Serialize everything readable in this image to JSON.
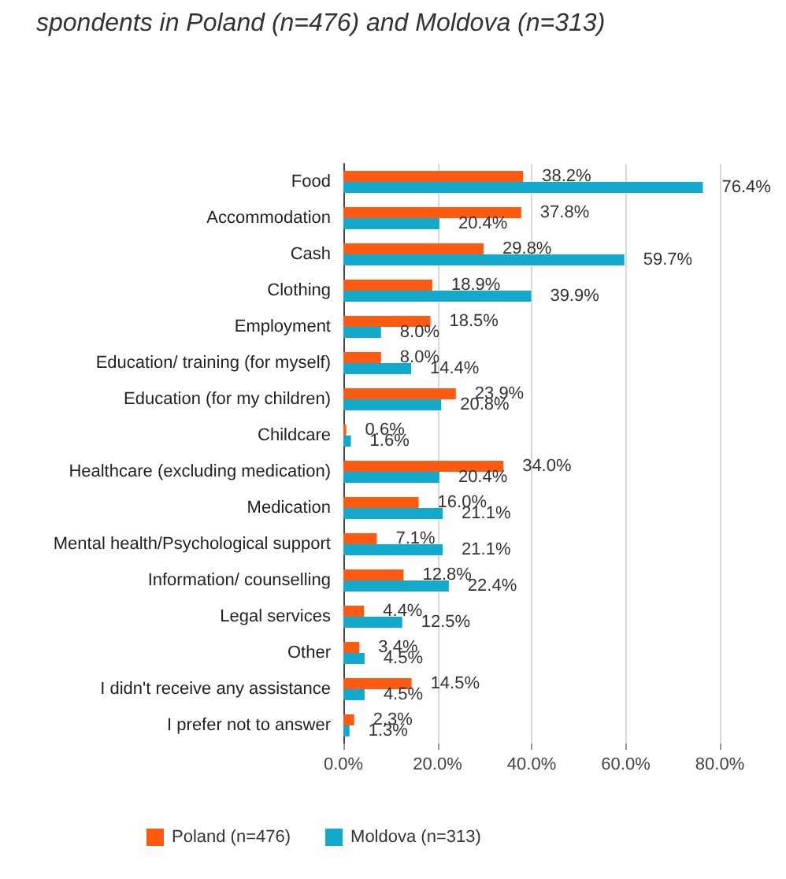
{
  "chart_data": {
    "type": "bar",
    "orientation": "horizontal",
    "title": "spondents in Poland (n=476) and Moldova (n=313)",
    "categories": [
      "Food",
      "Accommodation",
      "Cash",
      "Clothing",
      "Employment",
      "Education/ training (for myself)",
      "Education (for my children)",
      "Childcare",
      "Healthcare (excluding medication)",
      "Medication",
      "Mental health/Psychological support",
      "Information/ counselling",
      "Legal services",
      "Other",
      "I didn't receive any assistance",
      "I prefer not to answer"
    ],
    "series": [
      {
        "name": "Poland (n=476)",
        "color": "#ff5a12",
        "values": [
          38.2,
          37.8,
          29.8,
          18.9,
          18.5,
          8.0,
          23.9,
          0.6,
          34.0,
          16.0,
          7.1,
          12.8,
          4.4,
          3.4,
          14.5,
          2.3
        ],
        "value_labels": [
          "38.2%",
          "37.8%",
          "29.8%",
          "18.9%",
          "18.5%",
          "8.0%",
          "23.9%",
          "0.6%",
          "34.0%",
          "16.0%",
          "7.1%",
          "12.8%",
          "4.4%",
          "3.4%",
          "14.5%",
          "2.3%"
        ]
      },
      {
        "name": "Moldova (n=313)",
        "color": "#12a9cc",
        "values": [
          76.4,
          20.4,
          59.7,
          39.9,
          8.0,
          14.4,
          20.8,
          1.6,
          20.4,
          21.1,
          21.1,
          22.4,
          12.5,
          4.5,
          4.5,
          1.3
        ],
        "value_labels": [
          "76.4%",
          "20.4%",
          "59.7%",
          "39.9%",
          "8.0%",
          "14.4%",
          "20.8%",
          "1.6%",
          "20.4%",
          "21.1%",
          "21.1%",
          "22.4%",
          "12.5%",
          "4.5%",
          "4.5%",
          "1.3%"
        ]
      }
    ],
    "xlim": [
      0,
      80
    ],
    "xticks": [
      {
        "value": 0,
        "label": "0.0%"
      },
      {
        "value": 20,
        "label": "20.0%"
      },
      {
        "value": 40,
        "label": "40.0%"
      },
      {
        "value": 60,
        "label": "60.0%"
      },
      {
        "value": 80,
        "label": "80.0%"
      }
    ],
    "grid": "x",
    "legend": "bottom"
  }
}
